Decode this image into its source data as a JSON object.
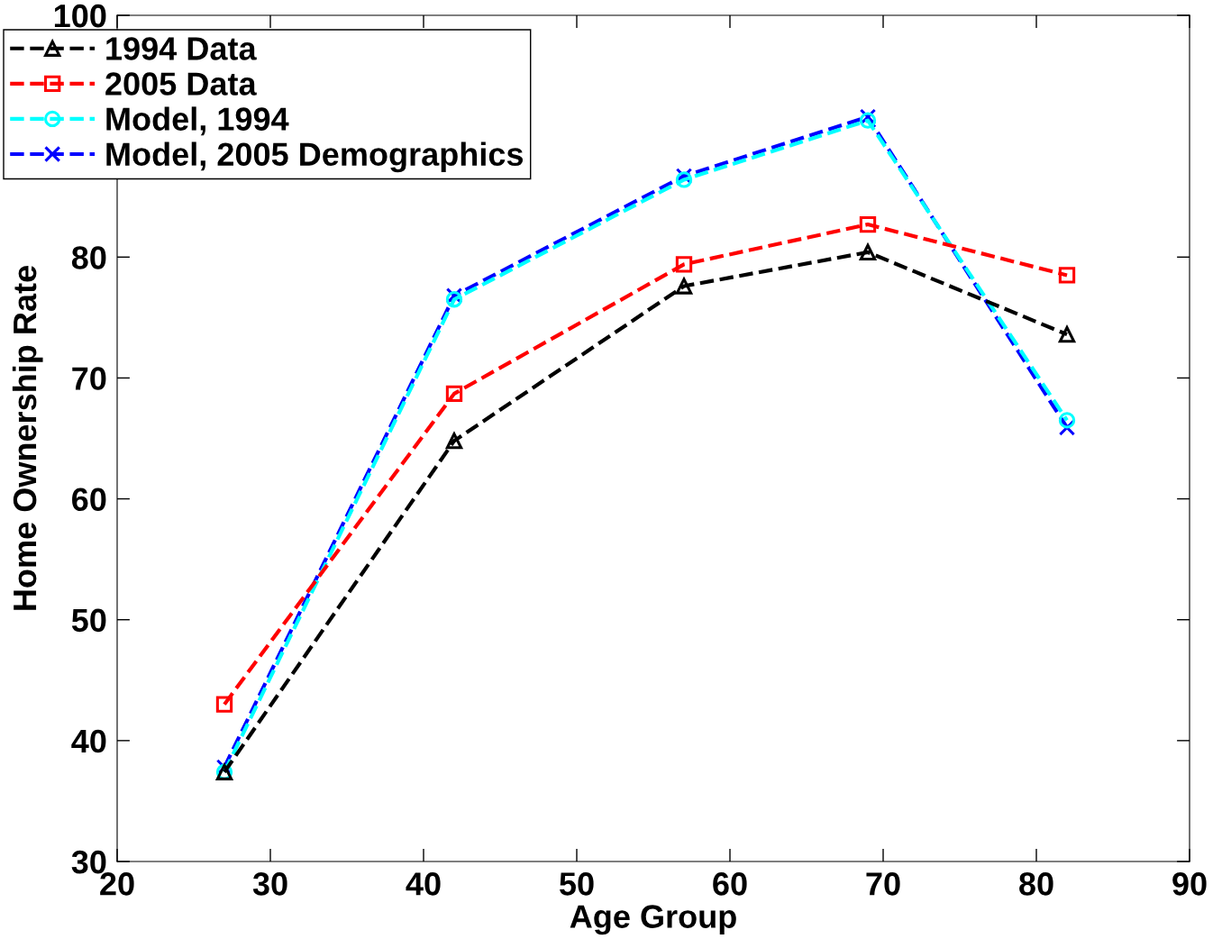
{
  "chart_data": {
    "type": "line",
    "xlabel": "Age Group",
    "ylabel": "Home Ownership Rate",
    "x": [
      27,
      42,
      57,
      69,
      82
    ],
    "xlim": [
      20,
      90
    ],
    "xticks": [
      20,
      30,
      40,
      50,
      60,
      70,
      80,
      90
    ],
    "ylim": [
      30,
      100
    ],
    "yticks": [
      30,
      40,
      50,
      60,
      70,
      80,
      100
    ],
    "line_style": "dashed",
    "legend": "top left",
    "grid": false,
    "series": [
      {
        "name": "1994 Data",
        "color": "#000000",
        "marker": "triangle",
        "values": [
          37.4,
          64.8,
          77.6,
          80.4,
          73.6
        ]
      },
      {
        "name": "2005 Data",
        "color": "#ff0000",
        "marker": "square",
        "values": [
          43.0,
          68.7,
          79.4,
          82.7,
          78.5
        ]
      },
      {
        "name": "Model, 1994",
        "color": "#00ffff",
        "marker": "circle",
        "values": [
          37.4,
          76.5,
          86.4,
          91.3,
          66.5
        ]
      },
      {
        "name": "Model, 2005 Demographics",
        "color": "#0000ff",
        "marker": "cross",
        "values": [
          37.8,
          76.8,
          86.7,
          91.6,
          65.9
        ]
      }
    ]
  }
}
